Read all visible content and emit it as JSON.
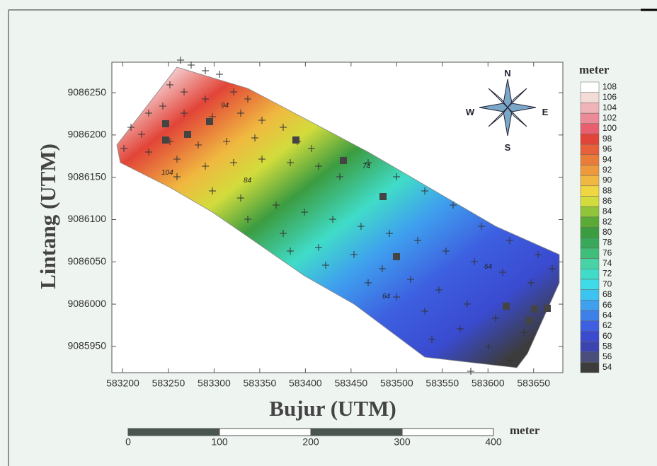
{
  "map": {
    "x_label": "Bujur (UTM)",
    "y_label": "Lintang (UTM)",
    "xlim": [
      583188,
      583682
    ],
    "ylim": [
      9085919,
      9086286
    ],
    "xticks": [
      583200,
      583250,
      583300,
      583350,
      583400,
      583450,
      583500,
      583550,
      583600,
      583650
    ],
    "yticks": [
      9085950,
      9086000,
      9086050,
      9086100,
      9086150,
      9086200,
      9086250
    ],
    "contour_labels": [
      "94",
      "104",
      "84",
      "64",
      "64",
      "74"
    ]
  },
  "legend": {
    "title": "meter",
    "levels": [
      54,
      56,
      58,
      60,
      62,
      64,
      66,
      68,
      70,
      72,
      74,
      76,
      78,
      80,
      82,
      84,
      86,
      88,
      90,
      92,
      94,
      96,
      98,
      100,
      102,
      104,
      106,
      108
    ],
    "colors": [
      "#3c3c3c",
      "#4a4e7a",
      "#3c44b0",
      "#3a4bd0",
      "#3d5fe0",
      "#3f7fe8",
      "#3fa0ee",
      "#3dc3f0",
      "#3fdbe8",
      "#40dcc8",
      "#48d3a6",
      "#3fbe7a",
      "#3aa85a",
      "#3c9c40",
      "#5aaa35",
      "#90c43a",
      "#d2dc3c",
      "#f0d640",
      "#f0b840",
      "#ee9a3c",
      "#ea7c3a",
      "#e8603a",
      "#e24438",
      "#e86070",
      "#ec8a98",
      "#f0b4b8",
      "#f4dcd6",
      "#ffffff"
    ]
  },
  "compass": {
    "north": "N",
    "south": "S",
    "east": "E",
    "west": "W"
  },
  "scale_bar": {
    "unit": "meter",
    "ticks": [
      0,
      100,
      200,
      300,
      400
    ]
  }
}
